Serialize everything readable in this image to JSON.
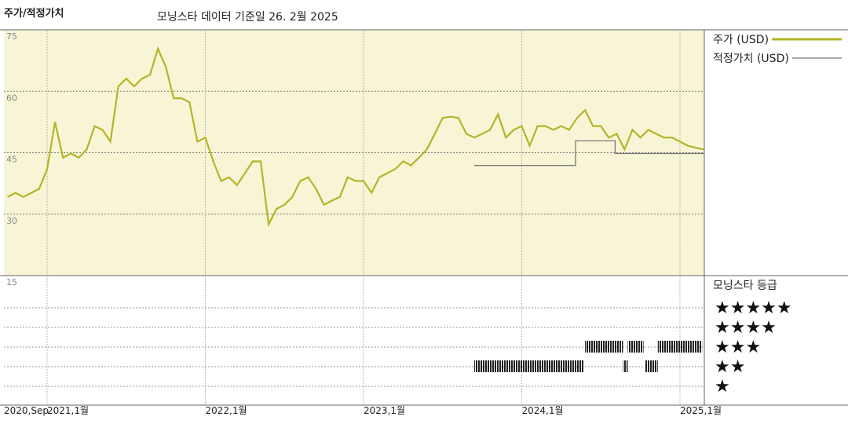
{
  "chart_data": {
    "type": "line",
    "title": "주가/적정가치",
    "subtitle": "모닝스타 데이터 기준일 26. 2월 2025",
    "xlim": [
      2020.727,
      2025.154
    ],
    "xticks": [
      {
        "value": 2020.727,
        "label": "2020,Sep"
      },
      {
        "value": 2021,
        "label": "2021,1월"
      },
      {
        "value": 2022,
        "label": "2022,1월"
      },
      {
        "value": 2023,
        "label": "2023,1월"
      },
      {
        "value": 2024,
        "label": "2024,1월"
      },
      {
        "value": 2025,
        "label": "2025,1월"
      }
    ],
    "ylim": [
      15,
      75
    ],
    "yticks": [
      15,
      30,
      45,
      60,
      75
    ],
    "grid": true,
    "legend": "right",
    "series": [
      {
        "name": "주가 (USD)",
        "color": "#b4b42a",
        "x": [
          2020.75,
          2020.8,
          2020.85,
          2020.9,
          2020.95,
          2021,
          2021.05,
          2021.1,
          2021.15,
          2021.2,
          2021.25,
          2021.3,
          2021.35,
          2021.4,
          2021.45,
          2021.5,
          2021.55,
          2021.6,
          2021.65,
          2021.7,
          2021.75,
          2021.8,
          2021.85,
          2021.9,
          2021.95,
          2022,
          2022.05,
          2022.1,
          2022.15,
          2022.2,
          2022.25,
          2022.3,
          2022.35,
          2022.4,
          2022.45,
          2022.5,
          2022.55,
          2022.6,
          2022.65,
          2022.7,
          2022.75,
          2022.8,
          2022.85,
          2022.9,
          2022.95,
          2023,
          2023.05,
          2023.1,
          2023.15,
          2023.2,
          2023.25,
          2023.3,
          2023.35,
          2023.4,
          2023.45,
          2023.5,
          2023.55,
          2023.6,
          2023.65,
          2023.7,
          2023.75,
          2023.8,
          2023.85,
          2023.9,
          2023.95,
          2024,
          2024.05,
          2024.1,
          2024.15,
          2024.2,
          2024.25,
          2024.3,
          2024.35,
          2024.4,
          2024.45,
          2024.5,
          2024.55,
          2024.6,
          2024.65,
          2024.7,
          2024.75,
          2024.8,
          2024.85,
          2024.9,
          2024.95,
          2025,
          2025.05,
          2025.1,
          2025.15
        ],
        "values": [
          34.2,
          35.2,
          34.2,
          35.2,
          36.2,
          41.0,
          52.5,
          43.8,
          44.8,
          43.8,
          45.8,
          51.5,
          50.6,
          47.7,
          61.2,
          63.1,
          61.2,
          63.1,
          64.0,
          70.4,
          66.0,
          58.3,
          58.3,
          57.3,
          47.7,
          48.7,
          42.9,
          38.1,
          39.0,
          37.1,
          40.0,
          42.9,
          42.9,
          27.5,
          31.3,
          32.3,
          34.2,
          38.1,
          39.0,
          36.2,
          32.3,
          33.3,
          34.2,
          39.0,
          38.1,
          38.1,
          35.2,
          39.0,
          40.0,
          41.0,
          42.9,
          41.9,
          43.8,
          45.8,
          49.6,
          53.5,
          53.8,
          53.5,
          49.6,
          48.7,
          49.6,
          50.6,
          54.4,
          48.7,
          50.6,
          51.5,
          46.7,
          51.5,
          51.5,
          50.6,
          51.5,
          50.6,
          53.5,
          55.4,
          51.5,
          51.5,
          48.7,
          49.6,
          45.8,
          50.6,
          48.7,
          50.6,
          49.6,
          48.7,
          48.7,
          47.7,
          46.7,
          46.2,
          45.8
        ]
      },
      {
        "name": "적정가치 (USD)",
        "color": "#777777",
        "x": [
          2023.7,
          2024.34,
          2024.34,
          2024.59,
          2024.59,
          2025.154
        ],
        "values": [
          41.9,
          41.9,
          47.9,
          47.9,
          44.8,
          44.8
        ]
      }
    ],
    "rating_title": "모닝스타 등급",
    "star_labels": [
      "★",
      "★★",
      "★★★",
      "★★★★",
      "★★★★★"
    ],
    "ratings": [
      {
        "from": 2023.7,
        "to": 2024.39,
        "stars": 2
      },
      {
        "from": 2024.4,
        "to": 2024.64,
        "stars": 3
      },
      {
        "from": 2024.64,
        "to": 2024.67,
        "stars": 2
      },
      {
        "from": 2024.67,
        "to": 2024.77,
        "stars": 3
      },
      {
        "from": 2024.78,
        "to": 2024.86,
        "stars": 2
      },
      {
        "from": 2024.86,
        "to": 2025.14,
        "stars": 3
      }
    ]
  }
}
